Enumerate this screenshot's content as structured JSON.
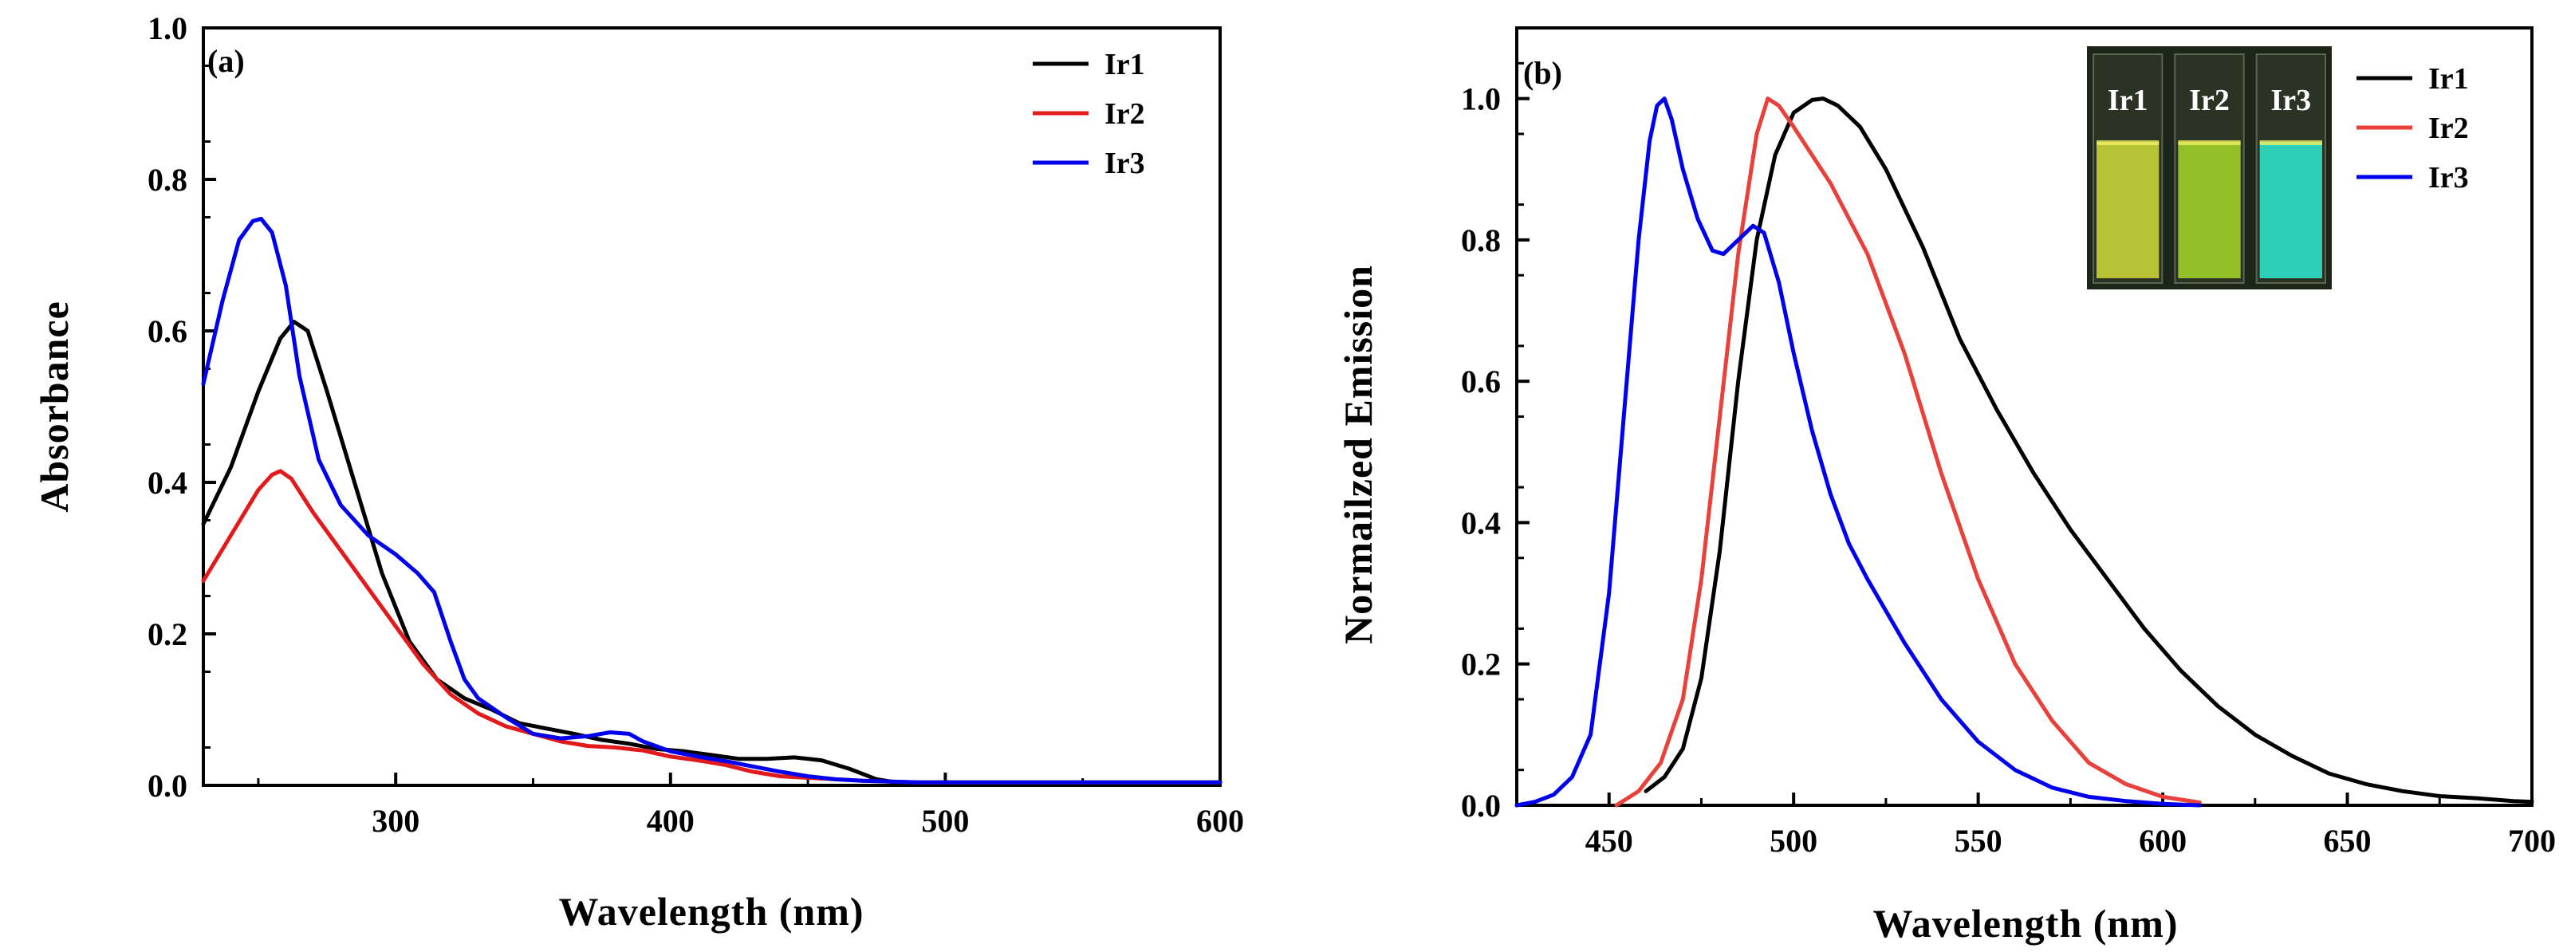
{
  "chart_data": [
    {
      "type": "line",
      "panel_label": "(a)",
      "xlabel": "Wavelength (nm)",
      "ylabel": "Absorbance",
      "xlim": [
        230,
        600
      ],
      "ylim": [
        0.0,
        1.0
      ],
      "xticks": [
        300,
        400,
        500,
        600
      ],
      "xtick_labels": [
        "300",
        "400",
        "500",
        "600"
      ],
      "yticks": [
        0.0,
        0.2,
        0.4,
        0.6,
        0.8,
        1.0
      ],
      "ytick_labels": [
        "0.0",
        "0.2",
        "0.4",
        "0.6",
        "0.8",
        "1.0"
      ],
      "legend_position": "top-right",
      "series": [
        {
          "name": "Ir1",
          "color": "#000000",
          "x": [
            230,
            240,
            250,
            258,
            263,
            268,
            275,
            285,
            295,
            305,
            315,
            325,
            335,
            345,
            355,
            365,
            375,
            385,
            395,
            405,
            415,
            425,
            435,
            445,
            455,
            465,
            475,
            482,
            490,
            500,
            550,
            600
          ],
          "y": [
            0.345,
            0.42,
            0.52,
            0.59,
            0.612,
            0.6,
            0.52,
            0.4,
            0.28,
            0.19,
            0.14,
            0.115,
            0.1,
            0.082,
            0.075,
            0.068,
            0.06,
            0.055,
            0.048,
            0.045,
            0.04,
            0.035,
            0.035,
            0.037,
            0.033,
            0.022,
            0.008,
            0.004,
            0.004,
            0.004,
            0.004,
            0.004
          ]
        },
        {
          "name": "Ir2",
          "color": "#e31a1c",
          "x": [
            230,
            240,
            250,
            255,
            258,
            262,
            270,
            280,
            290,
            300,
            310,
            320,
            330,
            340,
            350,
            360,
            370,
            380,
            390,
            400,
            410,
            420,
            430,
            440,
            450,
            460,
            470,
            480,
            490,
            500,
            550,
            600
          ],
          "y": [
            0.27,
            0.33,
            0.39,
            0.41,
            0.415,
            0.405,
            0.36,
            0.31,
            0.26,
            0.21,
            0.16,
            0.12,
            0.095,
            0.078,
            0.068,
            0.058,
            0.052,
            0.05,
            0.046,
            0.038,
            0.033,
            0.027,
            0.018,
            0.012,
            0.01,
            0.008,
            0.006,
            0.005,
            0.004,
            0.004,
            0.004,
            0.004
          ]
        },
        {
          "name": "Ir3",
          "color": "#0000ee",
          "x": [
            230,
            237,
            243,
            248,
            251,
            255,
            260,
            265,
            272,
            280,
            290,
            300,
            308,
            314,
            320,
            325,
            330,
            340,
            350,
            360,
            370,
            378,
            385,
            390,
            400,
            410,
            420,
            430,
            440,
            450,
            460,
            470,
            480,
            490,
            500,
            550,
            600
          ],
          "y": [
            0.53,
            0.64,
            0.72,
            0.745,
            0.748,
            0.73,
            0.66,
            0.54,
            0.43,
            0.37,
            0.33,
            0.305,
            0.28,
            0.255,
            0.19,
            0.14,
            0.115,
            0.09,
            0.068,
            0.062,
            0.065,
            0.07,
            0.068,
            0.058,
            0.045,
            0.038,
            0.032,
            0.025,
            0.018,
            0.012,
            0.008,
            0.006,
            0.005,
            0.004,
            0.004,
            0.004,
            0.004
          ]
        }
      ]
    },
    {
      "type": "line",
      "panel_label": "(b)",
      "xlabel": "Wavelength (nm)",
      "ylabel": "Normailzed Emission",
      "xlim": [
        425,
        700
      ],
      "ylim": [
        0.0,
        1.1
      ],
      "xticks": [
        450,
        500,
        550,
        600,
        650,
        700
      ],
      "xtick_labels": [
        "450",
        "500",
        "550",
        "600",
        "650",
        "700"
      ],
      "yticks": [
        0.0,
        0.2,
        0.4,
        0.6,
        0.8,
        1.0
      ],
      "ytick_labels": [
        "0.0",
        "0.2",
        "0.4",
        "0.6",
        "0.8",
        "1.0"
      ],
      "legend_position": "top-right",
      "inset": {
        "description": "photo of three cuvettes under UV light",
        "cuvette_labels": [
          "Ir1",
          "Ir2",
          "Ir3"
        ],
        "cuvette_colors": [
          "#c8d23a",
          "#9ecf2a",
          "#2ee0c8"
        ]
      },
      "series": [
        {
          "name": "Ir1",
          "color": "#000000",
          "x": [
            460,
            465,
            470,
            475,
            480,
            485,
            490,
            495,
            500,
            505,
            508,
            512,
            518,
            525,
            535,
            545,
            555,
            565,
            575,
            585,
            595,
            605,
            615,
            625,
            635,
            645,
            655,
            665,
            675,
            685,
            695,
            700
          ],
          "y": [
            0.02,
            0.04,
            0.08,
            0.18,
            0.36,
            0.6,
            0.8,
            0.92,
            0.98,
            0.998,
            1.0,
            0.99,
            0.96,
            0.9,
            0.79,
            0.66,
            0.56,
            0.47,
            0.39,
            0.32,
            0.25,
            0.19,
            0.14,
            0.1,
            0.07,
            0.045,
            0.03,
            0.02,
            0.013,
            0.01,
            0.006,
            0.005
          ]
        },
        {
          "name": "Ir2",
          "color": "#e8403a",
          "x": [
            452,
            458,
            464,
            470,
            475,
            480,
            485,
            490,
            493,
            496,
            500,
            505,
            510,
            520,
            530,
            540,
            550,
            560,
            570,
            580,
            590,
            600,
            610
          ],
          "y": [
            0.0,
            0.02,
            0.06,
            0.15,
            0.32,
            0.55,
            0.78,
            0.95,
            1.0,
            0.99,
            0.96,
            0.92,
            0.88,
            0.78,
            0.64,
            0.47,
            0.32,
            0.2,
            0.12,
            0.06,
            0.03,
            0.012,
            0.004
          ]
        },
        {
          "name": "Ir3",
          "color": "#0000ee",
          "x": [
            425,
            430,
            435,
            440,
            445,
            450,
            454,
            458,
            461,
            463,
            465,
            467,
            470,
            474,
            478,
            481,
            485,
            489,
            492,
            496,
            500,
            505,
            510,
            515,
            520,
            530,
            540,
            550,
            560,
            570,
            580,
            590,
            600,
            610
          ],
          "y": [
            0.0,
            0.005,
            0.015,
            0.04,
            0.1,
            0.3,
            0.55,
            0.8,
            0.94,
            0.99,
            1.0,
            0.97,
            0.9,
            0.83,
            0.785,
            0.78,
            0.8,
            0.82,
            0.81,
            0.74,
            0.64,
            0.53,
            0.44,
            0.37,
            0.32,
            0.23,
            0.15,
            0.09,
            0.05,
            0.025,
            0.012,
            0.006,
            0.002,
            0.0
          ]
        }
      ]
    }
  ]
}
